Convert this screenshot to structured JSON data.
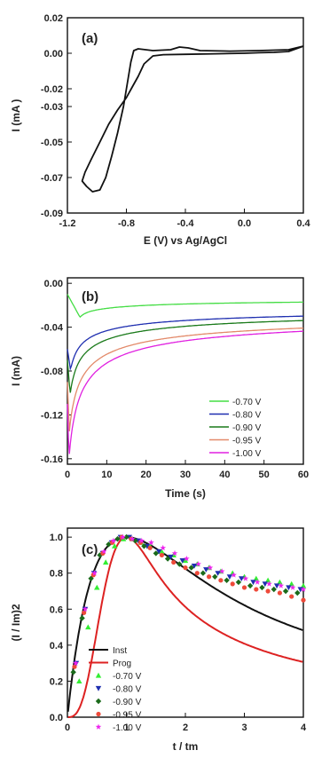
{
  "chart_data": [
    {
      "type": "line",
      "panel_label": "(a)",
      "xlabel": "E (V) vs Ag/AgCl",
      "ylabel": "I (mA )",
      "xlim": [
        -1.2,
        0.4
      ],
      "ylim": [
        -0.09,
        0.02
      ],
      "xticks": [
        -1.2,
        -0.8,
        -0.4,
        0.0,
        0.4
      ],
      "xtick_labels": [
        "-1.2",
        "-0.8",
        "-0.4",
        "0.0",
        "0.4"
      ],
      "yticks": [
        0.02,
        0.0,
        -0.02,
        -0.03,
        -0.05,
        -0.07,
        -0.09
      ],
      "ytick_labels": [
        "0.02",
        "0.00",
        "-0.02",
        "-0.03",
        "-0.05",
        "-0.07",
        "-0.09"
      ],
      "grid": false,
      "series": [
        {
          "color": "#111111",
          "points": [
            [
              0.4,
              0.004
            ],
            [
              0.3,
              0.001
            ],
            [
              0.2,
              0.0005
            ],
            [
              0.1,
              0.0003
            ],
            [
              0.0,
              0.0
            ],
            [
              -0.2,
              -0.0003
            ],
            [
              -0.4,
              -0.0006
            ],
            [
              -0.55,
              -0.0008
            ],
            [
              -0.62,
              -0.0015
            ],
            [
              -0.68,
              -0.006
            ],
            [
              -0.72,
              -0.013
            ],
            [
              -0.76,
              -0.019
            ],
            [
              -0.8,
              -0.025
            ],
            [
              -0.86,
              -0.032
            ],
            [
              -0.92,
              -0.04
            ],
            [
              -0.98,
              -0.05
            ],
            [
              -1.04,
              -0.06
            ],
            [
              -1.08,
              -0.067
            ],
            [
              -1.1,
              -0.072
            ],
            [
              -1.07,
              -0.075
            ],
            [
              -1.03,
              -0.078
            ],
            [
              -0.98,
              -0.077
            ],
            [
              -0.94,
              -0.07
            ],
            [
              -0.9,
              -0.058
            ],
            [
              -0.86,
              -0.045
            ],
            [
              -0.82,
              -0.03
            ],
            [
              -0.79,
              -0.015
            ],
            [
              -0.77,
              -0.005
            ],
            [
              -0.75,
              0.0015
            ],
            [
              -0.72,
              0.0025
            ],
            [
              -0.62,
              0.0015
            ],
            [
              -0.5,
              0.002
            ],
            [
              -0.44,
              0.0035
            ],
            [
              -0.38,
              0.003
            ],
            [
              -0.3,
              0.0015
            ],
            [
              -0.1,
              0.0012
            ],
            [
              0.1,
              0.0015
            ],
            [
              0.3,
              0.002
            ],
            [
              0.4,
              0.004
            ]
          ]
        }
      ]
    },
    {
      "type": "line",
      "panel_label": "(b)",
      "xlabel": "Time (s)",
      "ylabel": "I (mA)",
      "xlim": [
        0,
        60
      ],
      "ylim": [
        -0.165,
        0.005
      ],
      "xticks": [
        0,
        10,
        20,
        30,
        40,
        50,
        60
      ],
      "yticks": [
        0.0,
        -0.04,
        -0.08,
        -0.12,
        -0.16
      ],
      "ytick_labels": [
        "0.00",
        "-0.04",
        "-0.08",
        "-0.12",
        "-0.16"
      ],
      "grid": false,
      "legend": "center-right",
      "series": [
        {
          "name": "-0.70 V",
          "color": "#44dd44",
          "i0": -0.01,
          "imax": -0.031,
          "tmax": 3.2,
          "iinf": -0.013,
          "A": 0.016,
          "tau": 25
        },
        {
          "name": "-0.80 V",
          "color": "#1f2fb0",
          "i0": -0.06,
          "imax": -0.079,
          "tmax": 0.8,
          "iinf": -0.02,
          "A": 0.055,
          "tau": 12
        },
        {
          "name": "-0.90 V",
          "color": "#1a7a1a",
          "i0": -0.07,
          "imax": -0.101,
          "tmax": 0.7,
          "iinf": -0.021,
          "A": 0.075,
          "tau": 11
        },
        {
          "name": "-0.95 V",
          "color": "#e38a6a",
          "i0": -0.09,
          "imax": -0.135,
          "tmax": 0.5,
          "iinf": -0.023,
          "A": 0.108,
          "tau": 10
        },
        {
          "name": "-1.00 V",
          "color": "#e020e0",
          "i0": -0.11,
          "imax": -0.16,
          "tmax": 0.4,
          "iinf": -0.022,
          "A": 0.135,
          "tau": 9.5
        }
      ]
    },
    {
      "type": "scatter",
      "panel_label": "(c)",
      "xlabel": "t / tm",
      "ylabel": "(I / Im)2",
      "xlim": [
        0,
        4
      ],
      "ylim": [
        0,
        1.05
      ],
      "xticks": [
        0,
        1,
        2,
        3,
        4
      ],
      "yticks": [
        0.0,
        0.2,
        0.4,
        0.6,
        0.8,
        1.0
      ],
      "ytick_labels": [
        "0.0",
        "0.2",
        "0.4",
        "0.6",
        "0.8",
        "1.0"
      ],
      "grid": false,
      "legend": "lower-left",
      "curves": [
        {
          "name": "Inst",
          "color": "#111111",
          "model": "instantaneous"
        },
        {
          "name": "Prog",
          "color": "#dd2222",
          "model": "progressive"
        }
      ],
      "series": [
        {
          "name": "-0.70 V",
          "color": "#33ee33",
          "marker": "triangle-up",
          "x": [
            0.2,
            0.35,
            0.5,
            0.65,
            0.8,
            0.95,
            1.1,
            1.25,
            1.4,
            1.6,
            1.8,
            2.0,
            2.2,
            2.4,
            2.6,
            2.8,
            3.0,
            3.2,
            3.4,
            3.6,
            3.8,
            4.0
          ],
          "y": [
            0.2,
            0.5,
            0.72,
            0.86,
            0.95,
            0.99,
            0.99,
            0.97,
            0.95,
            0.92,
            0.9,
            0.87,
            0.85,
            0.83,
            0.81,
            0.8,
            0.78,
            0.77,
            0.76,
            0.75,
            0.74,
            0.73
          ]
        },
        {
          "name": "-0.80 V",
          "color": "#1f2fb0",
          "marker": "triangle-down",
          "x": [
            0.15,
            0.3,
            0.45,
            0.6,
            0.75,
            0.9,
            1.05,
            1.2,
            1.35,
            1.55,
            1.75,
            1.95,
            2.15,
            2.35,
            2.55,
            2.75,
            2.95,
            3.15,
            3.35,
            3.55,
            3.75,
            3.95
          ],
          "y": [
            0.3,
            0.6,
            0.8,
            0.91,
            0.97,
            1.0,
            1.0,
            0.98,
            0.95,
            0.92,
            0.89,
            0.87,
            0.84,
            0.82,
            0.8,
            0.78,
            0.77,
            0.75,
            0.74,
            0.73,
            0.72,
            0.71
          ]
        },
        {
          "name": "-0.90 V",
          "color": "#1a6a1a",
          "marker": "diamond",
          "x": [
            0.1,
            0.25,
            0.4,
            0.55,
            0.7,
            0.85,
            1.0,
            1.15,
            1.3,
            1.5,
            1.7,
            1.9,
            2.1,
            2.3,
            2.5,
            2.7,
            2.9,
            3.1,
            3.3,
            3.5,
            3.7,
            3.9
          ],
          "y": [
            0.25,
            0.55,
            0.77,
            0.9,
            0.96,
            0.99,
            1.0,
            0.98,
            0.95,
            0.91,
            0.88,
            0.85,
            0.83,
            0.8,
            0.78,
            0.76,
            0.75,
            0.73,
            0.72,
            0.71,
            0.7,
            0.69
          ]
        },
        {
          "name": "-0.95 V",
          "color": "#ee4a3a",
          "marker": "circle",
          "x": [
            0.12,
            0.28,
            0.44,
            0.6,
            0.76,
            0.92,
            1.08,
            1.24,
            1.4,
            1.6,
            1.8,
            2.0,
            2.2,
            2.4,
            2.6,
            2.8,
            3.0,
            3.2,
            3.4,
            3.6,
            3.8,
            4.0
          ],
          "y": [
            0.28,
            0.58,
            0.79,
            0.91,
            0.97,
            1.0,
            0.99,
            0.97,
            0.94,
            0.9,
            0.86,
            0.83,
            0.8,
            0.78,
            0.76,
            0.74,
            0.72,
            0.71,
            0.7,
            0.69,
            0.67,
            0.65
          ]
        },
        {
          "name": "-1.00 V",
          "color": "#ee22ee",
          "marker": "star",
          "x": [
            0.14,
            0.3,
            0.46,
            0.62,
            0.78,
            0.94,
            1.1,
            1.26,
            1.42,
            1.62,
            1.82,
            2.02,
            2.22,
            2.42,
            2.62,
            2.82,
            3.02,
            3.22,
            3.42,
            3.62,
            3.82,
            4.0
          ],
          "y": [
            0.3,
            0.6,
            0.8,
            0.92,
            0.98,
            1.0,
            0.99,
            0.98,
            0.97,
            0.94,
            0.91,
            0.88,
            0.85,
            0.83,
            0.81,
            0.79,
            0.77,
            0.75,
            0.74,
            0.73,
            0.72,
            0.71
          ]
        }
      ]
    }
  ]
}
